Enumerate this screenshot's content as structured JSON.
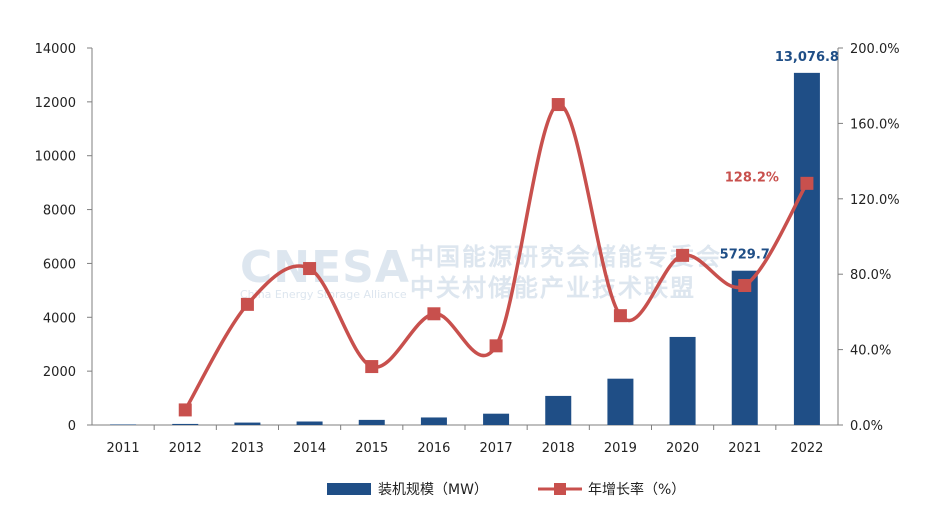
{
  "chart_data": {
    "type": "bar+line",
    "categories": [
      "2011",
      "2012",
      "2013",
      "2014",
      "2015",
      "2016",
      "2017",
      "2018",
      "2019",
      "2020",
      "2021",
      "2022"
    ],
    "series": [
      {
        "name": "装机规模（MW）",
        "type": "bar",
        "axis": "left",
        "color": "#1f4e86",
        "values": [
          20,
          40,
          90,
          130,
          190,
          280,
          420,
          1080,
          1720,
          3270,
          5729.7,
          13076.8
        ]
      },
      {
        "name": "年增长率（%）",
        "type": "line",
        "axis": "right",
        "color": "#c8504d",
        "values": [
          null,
          8,
          64,
          83,
          31,
          59,
          42,
          170,
          58,
          90,
          74,
          128.2
        ]
      }
    ],
    "left_axis": {
      "ylim": [
        0,
        14000
      ],
      "ticks": [
        "0",
        "2000",
        "4000",
        "6000",
        "8000",
        "10000",
        "12000",
        "14000"
      ]
    },
    "right_axis": {
      "ylim": [
        0,
        200
      ],
      "ticks": [
        "0.0%",
        "40.0%",
        "80.0%",
        "120.0%",
        "160.0%",
        "200.0%"
      ]
    },
    "data_labels": [
      {
        "text": "13,076.8",
        "series": 0,
        "index": 11,
        "color": "#1f4e86"
      },
      {
        "text": "5729.7",
        "series": 0,
        "index": 10,
        "color": "#1f4e86"
      },
      {
        "text": "128.2%",
        "series": 1,
        "index": 11,
        "color": "#c8504d"
      }
    ],
    "grid": false,
    "legend": "bottom-center"
  },
  "watermark": {
    "logo": "CNESA",
    "subtitle": "China Energy Storage Alliance",
    "line1": "中国能源研究会储能专委会",
    "line2": "中关村储能产业技术联盟"
  }
}
